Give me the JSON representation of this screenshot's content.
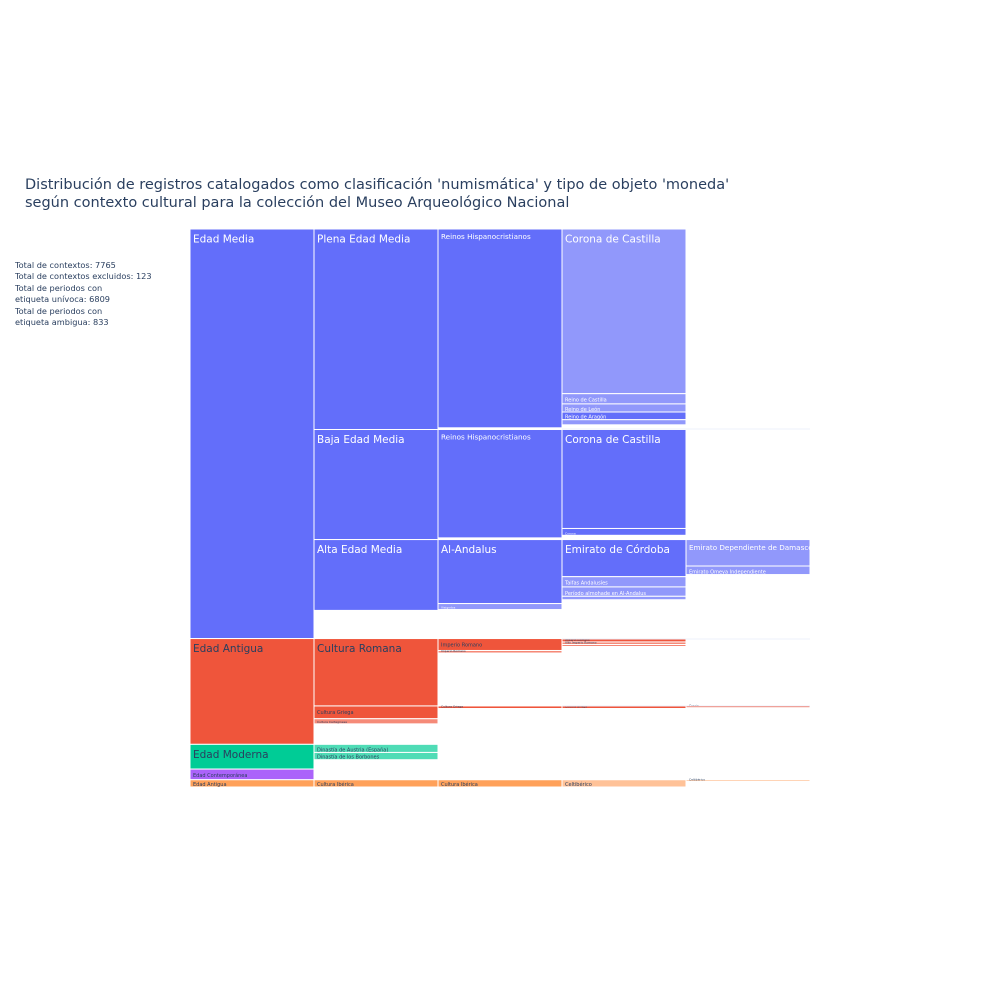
{
  "chart_data": {
    "type": "icicle",
    "title_lines": [
      "Distribución de registros catalogados como clasificación 'numismática' y tipo de objeto 'moneda'",
      "según contexto cultural para la colección del Museo Arqueológico Nacional"
    ],
    "stats_lines": [
      "Total de contextos: 7765",
      "Total de contextos excluidos: 123",
      "Total de periodos con",
      "etiqueta unívoca: 6809",
      "Total de periodos con",
      "etiqueta ambigua: 833"
    ],
    "colors": {
      "Edad Media": "#636efa",
      "Edad Media light": "#9198fb",
      "Edad Antigua": "#ef553b",
      "Edad Antigua light": "#f58a78",
      "Edad Moderna": "#00cc96",
      "Edad Moderna light": "#4fdcb6",
      "Edad Contemporánea": "#ab63fa",
      "Otros": "#ffa15a",
      "Otros light": "#ffc298"
    },
    "tree": [
      {
        "label": "Edad Media",
        "value": 4800,
        "color": "Edad Media",
        "children": [
          {
            "label": "Plena Edad Media",
            "value": 2350,
            "color": "Edad Media",
            "children": [
              {
                "label": "Reinos Hispanocristianos",
                "value": 2330,
                "color": "Edad Media",
                "children": [
                  {
                    "label": "Corona de Castilla",
                    "value": 1930,
                    "color": "Edad Media light"
                  },
                  {
                    "label": "Reino de Castilla",
                    "value": 120,
                    "color": "Edad Media light"
                  },
                  {
                    "label": "Reino de León",
                    "value": 95,
                    "color": "Edad Media light"
                  },
                  {
                    "label": "Reino de Aragón",
                    "value": 90,
                    "color": "Edad Media"
                  },
                  {
                    "label": "",
                    "value": 60,
                    "color": "Edad Media light"
                  }
                ]
              }
            ]
          },
          {
            "label": "Baja Edad Media",
            "value": 1290,
            "color": "Edad Media",
            "children": [
              {
                "label": "Reinos Hispanocristianos",
                "value": 1270,
                "color": "Edad Media",
                "children": [
                  {
                    "label": "Corona de Castilla",
                    "value": 1160,
                    "color": "Edad Media"
                  },
                  {
                    "label": "Corona",
                    "value": 80,
                    "color": "Edad Media"
                  }
                ]
              }
            ]
          },
          {
            "label": "Alta Edad Media",
            "value": 830,
            "color": "Edad Media",
            "children": [
              {
                "label": "Al-Andalus",
                "value": 750,
                "color": "Edad Media",
                "children": [
                  {
                    "label": "Emirato de Córdoba",
                    "value": 435,
                    "color": "Edad Media",
                    "children": [
                      {
                        "label": "Emirato Dependiente de Damasco",
                        "value": 310,
                        "color": "Edad Media light"
                      },
                      {
                        "label": "Emirato Omeya Independiente",
                        "value": 100,
                        "color": "Edad Media light"
                      }
                    ]
                  },
                  {
                    "label": "Taifas Andalusíes",
                    "value": 120,
                    "color": "Edad Media light"
                  },
                  {
                    "label": "Período almohade en Al-Andalus",
                    "value": 110,
                    "color": "Edad Media light"
                  },
                  {
                    "label": "",
                    "value": 40,
                    "color": "Edad Media light"
                  }
                ]
              },
              {
                "label": "Visigodos",
                "value": 70,
                "color": "Edad Media light"
              }
            ]
          }
        ]
      },
      {
        "label": "Edad Antigua",
        "value": 1240,
        "color": "Edad Antigua",
        "children": [
          {
            "label": "Cultura Romana",
            "value": 790,
            "color": "Edad Antigua",
            "children": [
              {
                "label": "Imperio Romano",
                "value": 140,
                "color": "Edad Antigua",
                "children": [
                  {
                    "label": "Imperio Romano",
                    "value": 40,
                    "color": "Edad Antigua"
                  },
                  {
                    "label": "Alto Imperio Romano",
                    "value": 30,
                    "color": "Edad Antigua light"
                  },
                  {
                    "label": "",
                    "value": 20,
                    "color": "Edad Antigua"
                  }
                ]
              },
              {
                "label": "Imperio Romano",
                "value": 30,
                "color": "Edad Antigua light"
              }
            ]
          },
          {
            "label": "Cultura Griega",
            "value": 150,
            "color": "Edad Antigua",
            "children": [
              {
                "label": "Cultura Griega",
                "value": 30,
                "color": "Edad Antigua",
                "children": [
                  {
                    "label": "Cultura Griega",
                    "value": 30,
                    "color": "Edad Antigua",
                    "children": [
                      {
                        "label": "Grecia",
                        "value": 20,
                        "color": "Edad Antigua"
                      }
                    ]
                  }
                ]
              }
            ]
          },
          {
            "label": "Cultura Cartaginesa",
            "value": 60,
            "color": "Edad Antigua light"
          }
        ]
      },
      {
        "label": "Edad Moderna",
        "value": 290,
        "color": "Edad Moderna",
        "children": [
          {
            "label": "Dinastía de Austria (España)",
            "value": 95,
            "color": "Edad Moderna light"
          },
          {
            "label": "Dinastía de los Borbones",
            "value": 85,
            "color": "Edad Moderna light"
          }
        ]
      },
      {
        "label": "Edad Contemporánea",
        "value": 125,
        "color": "Edad Contemporánea"
      },
      {
        "label": "Edad Antigua",
        "value": 85,
        "color": "Otros",
        "children": [
          {
            "label": "Cultura Ibérica",
            "value": 85,
            "color": "Otros",
            "children": [
              {
                "label": "Cultura Ibérica",
                "value": 85,
                "color": "Otros",
                "children": [
                  {
                    "label": "Celtibérico",
                    "value": 85,
                    "color": "Otros light",
                    "children": [
                      {
                        "label": "Celtibérico",
                        "value": 20,
                        "color": "Otros light"
                      }
                    ]
                  }
                ]
              }
            ]
          }
        ]
      }
    ]
  }
}
